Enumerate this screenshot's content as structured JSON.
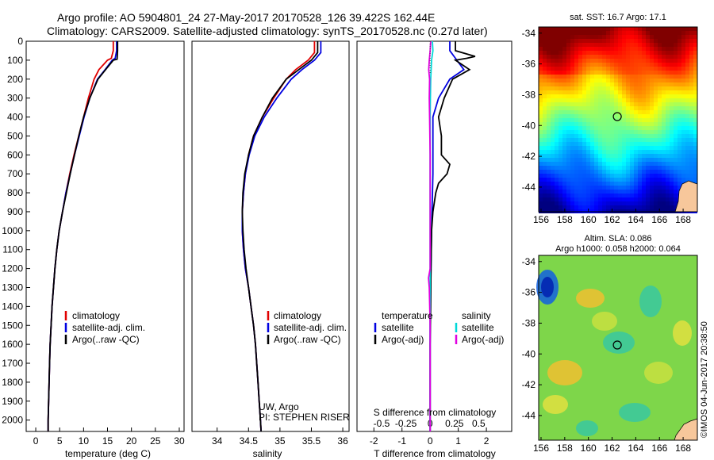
{
  "header": {
    "line1": "Argo profile: AO 5904801_24 27-May-2017 20170528_126 39.422S 162.44E",
    "line2": "Climatology: CARS2009. Satellite-adjusted climatology: synTS_20170528.nc (0.27d later)"
  },
  "colors": {
    "climatology": "#e00000",
    "satellite": "#0000e0",
    "argo": "#000000",
    "satellite_s": "#00d8d8",
    "argo_s": "#e000e0"
  },
  "credit": {
    "line1": "UW, Argo",
    "line2": "PI: STEPHEN RISER"
  },
  "footer_vertical": "©IMOS 04-Jun-2017 20:38:50",
  "map_titles": {
    "sst": "sat. SST: 16.7 Argo: 17.1",
    "sla_line1": "Altim. SLA: 0.086",
    "sla_line2": "Argo h1000: 0.058 h2000: 0.064"
  },
  "chart_data": [
    {
      "type": "line",
      "xlabel": "temperature (deg C)",
      "xlim": [
        -2,
        31
      ],
      "ylim": [
        0,
        2060
      ],
      "x_ticks": [
        "0",
        "5",
        "10",
        "15",
        "20",
        "25",
        "30"
      ],
      "y_ticks": [
        "0",
        "100",
        "200",
        "300",
        "400",
        "500",
        "600",
        "700",
        "800",
        "900",
        "1000",
        "1100",
        "1200",
        "1300",
        "1400",
        "1500",
        "1600",
        "1700",
        "1800",
        "1900",
        "2000"
      ],
      "legend": [
        "climatology",
        "satellite-adj. clim.",
        "Argo(..raw -QC)"
      ],
      "series": [
        {
          "name": "climatology",
          "color": "climatology",
          "depth": [
            0,
            50,
            90,
            100,
            150,
            200,
            300,
            400,
            500,
            600,
            700,
            800,
            900,
            1000,
            1100,
            1200,
            1300,
            1400,
            1500,
            1600,
            1700,
            1800,
            1900,
            2000,
            2060
          ],
          "values": [
            16.2,
            16.2,
            15.8,
            15.0,
            13.2,
            12.2,
            11.0,
            10.0,
            9.0,
            8.0,
            7.1,
            6.3,
            5.6,
            4.9,
            4.4,
            4.0,
            3.7,
            3.4,
            3.2,
            3.0,
            2.9,
            2.8,
            2.7,
            2.6,
            2.6
          ]
        },
        {
          "name": "satellite-adj. clim.",
          "color": "satellite",
          "depth": [
            0,
            50,
            90,
            100,
            150,
            200,
            300,
            400,
            500,
            600,
            700,
            800,
            900,
            1000,
            1100,
            1200,
            1300,
            1400,
            1500,
            1600,
            1700,
            1800,
            1900,
            2000,
            2060
          ],
          "values": [
            16.9,
            16.9,
            16.6,
            16.0,
            14.5,
            12.9,
            11.3,
            10.1,
            9.1,
            8.1,
            7.2,
            6.3,
            5.6,
            4.9,
            4.4,
            4.0,
            3.7,
            3.4,
            3.2,
            3.0,
            2.9,
            2.8,
            2.7,
            2.6,
            2.6
          ]
        },
        {
          "name": "Argo(..raw -QC)",
          "color": "argo",
          "depth": [
            0,
            50,
            95,
            100,
            150,
            200,
            300,
            400,
            500,
            600,
            700,
            800,
            900,
            1000,
            1100,
            1200,
            1300,
            1400,
            1500,
            1600,
            1700,
            1800,
            1900,
            2000,
            2060
          ],
          "values": [
            17.1,
            17.1,
            17.0,
            16.2,
            14.6,
            13.0,
            11.3,
            10.0,
            9.0,
            8.1,
            7.2,
            6.4,
            5.6,
            4.9,
            4.4,
            4.0,
            3.7,
            3.4,
            3.2,
            3.0,
            2.9,
            2.8,
            2.7,
            2.6,
            2.6
          ]
        }
      ]
    },
    {
      "type": "line",
      "xlabel": "salinity",
      "xlim": [
        33.6,
        36.1
      ],
      "ylim": [
        0,
        2060
      ],
      "x_ticks": [
        "34",
        "34.5",
        "35",
        "35.5",
        "36"
      ],
      "legend": [
        "climatology",
        "satellite-adj. clim.",
        "Argo(..raw -QC)"
      ],
      "series": [
        {
          "name": "climatology",
          "color": "climatology",
          "depth": [
            0,
            60,
            100,
            150,
            200,
            300,
            400,
            500,
            600,
            700,
            800,
            900,
            1000,
            1100,
            1200,
            1300,
            1400,
            1500,
            1600,
            1700,
            1800,
            1900,
            2000,
            2060
          ],
          "values": [
            35.55,
            35.55,
            35.45,
            35.25,
            35.1,
            34.9,
            34.72,
            34.58,
            34.5,
            34.45,
            34.42,
            34.4,
            34.4,
            34.42,
            34.45,
            34.5,
            34.54,
            34.58,
            34.61,
            34.63,
            34.65,
            34.67,
            34.69,
            34.7
          ]
        },
        {
          "name": "satellite-adj. clim.",
          "color": "satellite",
          "depth": [
            0,
            60,
            100,
            150,
            200,
            300,
            400,
            500,
            600,
            700,
            800,
            900,
            1000,
            1100,
            1200,
            1300,
            1400,
            1500,
            1600,
            1700,
            1800,
            1900,
            2000,
            2060
          ],
          "values": [
            35.65,
            35.65,
            35.55,
            35.35,
            35.18,
            34.95,
            34.75,
            34.6,
            34.51,
            34.45,
            34.42,
            34.4,
            34.4,
            34.42,
            34.45,
            34.5,
            34.54,
            34.58,
            34.61,
            34.63,
            34.65,
            34.67,
            34.69,
            34.7
          ]
        },
        {
          "name": "Argo(..raw -QC)",
          "color": "argo",
          "depth": [
            0,
            60,
            100,
            150,
            200,
            300,
            400,
            500,
            600,
            700,
            800,
            900,
            1000,
            1100,
            1200,
            1300,
            1400,
            1500,
            1600,
            1700,
            1800,
            1900,
            2000,
            2060
          ],
          "values": [
            35.6,
            35.6,
            35.5,
            35.3,
            35.1,
            34.88,
            34.72,
            34.58,
            34.5,
            34.44,
            34.41,
            34.4,
            34.41,
            34.43,
            34.46,
            34.5,
            34.54,
            34.58,
            34.61,
            34.63,
            34.65,
            34.67,
            34.69,
            34.7
          ]
        }
      ]
    },
    {
      "type": "line",
      "xlabel_t": "T difference from climatology",
      "xlabel_s": "S difference from climatology",
      "xlim": [
        -2.6,
        2.9
      ],
      "ylim": [
        0,
        2060
      ],
      "x_ticks": [
        "-2",
        "-1",
        "0",
        "1",
        "2"
      ],
      "s_ticks": [
        "-0.5",
        "-0.25",
        "0",
        "0.25",
        "0.5"
      ],
      "legend_t_head": "temperature",
      "legend_s_head": "salinity",
      "legend_t": [
        "satellite",
        "Argo(-adj)"
      ],
      "legend_s": [
        "satellite",
        "Argo(-adj)"
      ],
      "series": [
        {
          "name": "satellite",
          "color": "satellite",
          "depth": [
            0,
            50,
            90,
            150,
            200,
            300,
            400,
            500,
            700,
            1000,
            1500,
            2000,
            2060
          ],
          "values": [
            0.7,
            0.7,
            0.9,
            1.2,
            0.7,
            0.3,
            0.1,
            0.1,
            0.1,
            0.05,
            0.0,
            0.0,
            0.0
          ]
        },
        {
          "name": "Argo(-adj)",
          "color": "argo",
          "depth": [
            0,
            50,
            80,
            90,
            100,
            150,
            200,
            300,
            400,
            500,
            600,
            650,
            700,
            750,
            800,
            900,
            1000,
            1200,
            1400,
            1600,
            1800,
            2000,
            2060
          ],
          "values": [
            0.9,
            0.9,
            1.6,
            1.3,
            0.9,
            1.4,
            0.8,
            0.5,
            0.3,
            0.4,
            0.4,
            0.7,
            0.6,
            0.3,
            0.2,
            0.1,
            0.05,
            0.03,
            0.02,
            0.0,
            0.0,
            0.0,
            0.0
          ]
        },
        {
          "name": "satellite",
          "color": "satellite_s",
          "depth": [
            0,
            50,
            100,
            200,
            300,
            400,
            600,
            800,
            1000,
            1200,
            1500,
            2000,
            2060
          ],
          "values": [
            0.08,
            0.1,
            0.05,
            0.02,
            0.01,
            0.0,
            0.0,
            0.0,
            0.0,
            0.0,
            0.0,
            0.0,
            0.0
          ]
        },
        {
          "name": "Argo(-adj)",
          "color": "argo_s",
          "depth": [
            0,
            50,
            100,
            150,
            200,
            300,
            400,
            600,
            800,
            1000,
            1200,
            1250,
            1300,
            1500,
            1800,
            2000,
            2060
          ],
          "values": [
            0.02,
            0.0,
            -0.03,
            -0.05,
            -0.02,
            -0.03,
            -0.02,
            0.0,
            0.0,
            0.0,
            0.0,
            -0.06,
            -0.03,
            0.0,
            0.0,
            0.0,
            0.0
          ]
        }
      ]
    }
  ],
  "maps": {
    "x_ticks": [
      "156",
      "158",
      "160",
      "162",
      "164",
      "166",
      "168"
    ],
    "y_ticks": [
      "-34",
      "-36",
      "-38",
      "-40",
      "-42",
      "-44"
    ],
    "xlim": [
      155.8,
      169.2
    ],
    "ylim": [
      -45.6,
      -33.6
    ],
    "marker": {
      "lon": 162.44,
      "lat": -39.42
    }
  }
}
